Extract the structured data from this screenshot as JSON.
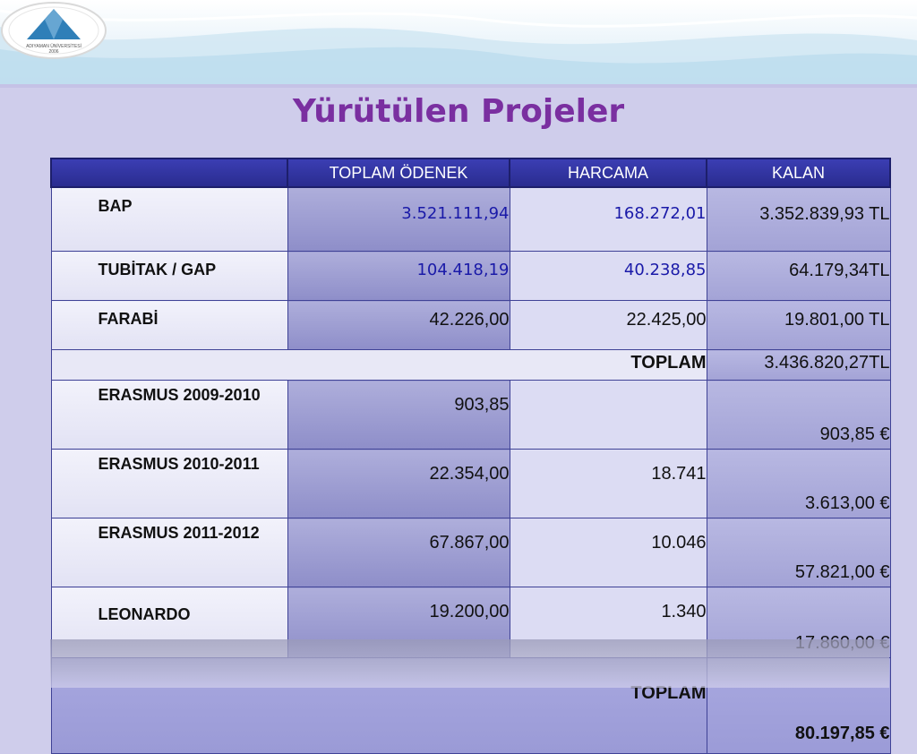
{
  "slide": {
    "title": "Yürütülen Projeler",
    "logo_text": "ADIYAMAN ÜNİVERSİTESİ",
    "logo_year": "2006"
  },
  "table": {
    "headers": [
      "",
      "TOPLAM ÖDENEK",
      "HARCAMA",
      "KALAN"
    ],
    "rows": [
      {
        "name": "BAP",
        "odenek": "3.521.111,94",
        "harcama": "168.272,01",
        "kalan": "3.352.839,93 TL"
      },
      {
        "name": "TUBİTAK / GAP",
        "odenek": "104.418,19",
        "harcama": "40.238,85",
        "kalan": "64.179,34TL"
      },
      {
        "name": "FARABİ",
        "odenek": "42.226,00",
        "harcama": "22.425,00",
        "kalan": "19.801,00 TL"
      }
    ],
    "subtotal": {
      "label": "TOPLAM",
      "kalan": "3.436.820,27TL"
    },
    "erasmus_rows": [
      {
        "name": "ERASMUS 2009-2010",
        "odenek": "903,85",
        "harcama": "",
        "kalan": "903,85 €"
      },
      {
        "name": "ERASMUS 2010-2011",
        "odenek": "22.354,00",
        "harcama": "18.741",
        "kalan": "3.613,00 €"
      },
      {
        "name": "ERASMUS 2011-2012",
        "odenek": "67.867,00",
        "harcama": "10.046",
        "kalan": "57.821,00 €"
      },
      {
        "name": "LEONARDO",
        "odenek": "19.200,00",
        "harcama": "1.340",
        "kalan": "17.860,00 €"
      }
    ],
    "total": {
      "label": "TOPLAM",
      "kalan": "80.197,85 €"
    }
  }
}
